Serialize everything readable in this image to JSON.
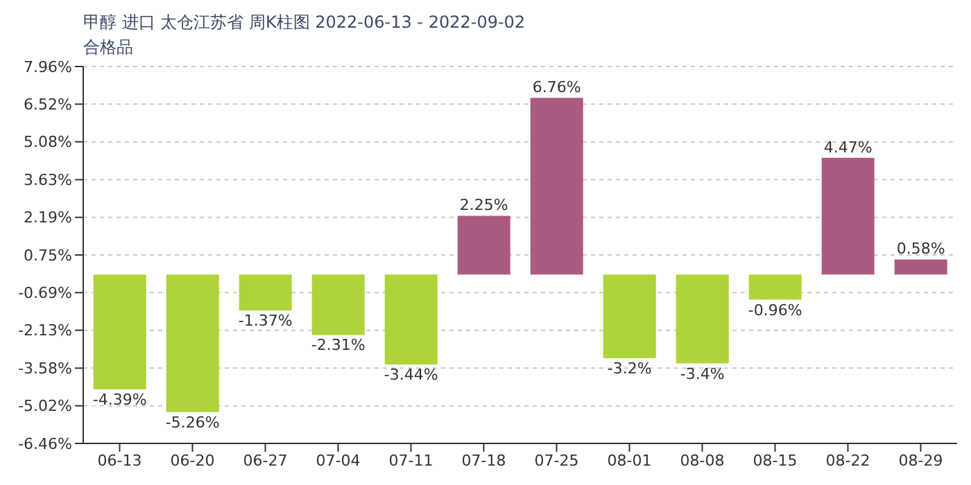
{
  "chart_data": {
    "type": "bar",
    "title": "甲醇 进口 太仓江苏省 周K柱图 2022-06-13 - 2022-09-02",
    "subtitle": "合格品",
    "categories": [
      "06-13",
      "06-20",
      "06-27",
      "07-04",
      "07-11",
      "07-18",
      "07-25",
      "08-01",
      "08-08",
      "08-15",
      "08-22",
      "08-29"
    ],
    "values": [
      -4.39,
      -5.26,
      -1.37,
      -2.31,
      -3.44,
      2.25,
      6.76,
      -3.2,
      -3.4,
      -0.96,
      4.47,
      0.58
    ],
    "value_labels": [
      "-4.39%",
      "-5.26%",
      "-1.37%",
      "-2.31%",
      "-3.44%",
      "2.25%",
      "6.76%",
      "-3.2%",
      "-3.4%",
      "-0.96%",
      "4.47%",
      "0.58%"
    ],
    "colors": [
      "#add43a",
      "#add43a",
      "#add43a",
      "#add43a",
      "#add43a",
      "#ab5a82",
      "#ab5a82",
      "#add43a",
      "#add43a",
      "#add43a",
      "#ab5a82",
      "#ab5a82"
    ],
    "ylim": [
      -6.46,
      7.96
    ],
    "yticks": [
      {
        "value": 7.96,
        "label": "7.96%"
      },
      {
        "value": 6.52,
        "label": "6.52%"
      },
      {
        "value": 5.08,
        "label": "5.08%"
      },
      {
        "value": 3.63,
        "label": "3.63%"
      },
      {
        "value": 2.19,
        "label": "2.19%"
      },
      {
        "value": 0.75,
        "label": "0.75%"
      },
      {
        "value": -0.69,
        "label": "-0.69%"
      },
      {
        "value": -2.13,
        "label": "-2.13%"
      },
      {
        "value": -3.58,
        "label": "-3.58%"
      },
      {
        "value": -5.02,
        "label": "-5.02%"
      },
      {
        "value": -6.46,
        "label": "-6.46%"
      }
    ],
    "grid": "y"
  }
}
